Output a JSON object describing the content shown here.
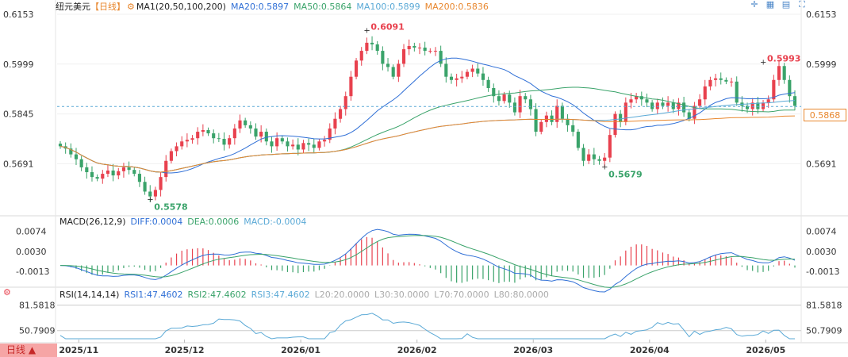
{
  "header": {
    "symbol": "纽元美元",
    "period": "【日线】",
    "ma_label": "MA1(20,50,100,200)",
    "ma20": "MA20:0.5897",
    "ma50": "MA50:0.5864",
    "ma100": "MA100:0.5899",
    "ma200": "MA200:0.5836"
  },
  "macd_header": {
    "label": "MACD(26,12,9)",
    "diff": "DIFF:0.0004",
    "dea": "DEA:0.0006",
    "macd": "MACD:-0.0004"
  },
  "rsi_header": {
    "label": "RSI(14,14,14)",
    "rsi1": "RSI1:47.4602",
    "rsi2": "RSI2:47.4602",
    "rsi3": "RSI3:47.4602",
    "l20": "L20:20.0000",
    "l30": "L30:30.0000",
    "l70": "L70:70.0000",
    "l80": "L80:80.0000"
  },
  "bottom_tab": "日线 ▲",
  "current_price": "0.5868",
  "colors": {
    "up": "#e8414e",
    "down": "#3aa36a",
    "ma20": "#2f6fd6",
    "ma50": "#3aa36a",
    "ma100": "#5aa9d6",
    "ma200": "#e8872e",
    "axis_text": "#333333"
  },
  "icons": [
    "crosshair-icon",
    "grid-icon",
    "settings-icon",
    "expand-icon"
  ],
  "chart_data": [
    {
      "type": "candlestick",
      "title": "纽元美元【日线】",
      "y_ticks": [
        "0.6153",
        "0.5999",
        "0.5845",
        "0.5691"
      ],
      "ylim": [
        0.554,
        0.6153
      ],
      "x_ticks": [
        "2025/11",
        "2025/12",
        "2026/01",
        "2026/02",
        "2026/03",
        "2026/04",
        "2026/05"
      ],
      "annotations": [
        {
          "label": "0.6091",
          "value": 0.6091,
          "kind": "high"
        },
        {
          "label": "0.5578",
          "value": 0.5578,
          "kind": "low"
        },
        {
          "label": "0.5679",
          "value": 0.5679,
          "kind": "low"
        },
        {
          "label": "0.5993",
          "value": 0.5993,
          "kind": "high"
        }
      ],
      "ohlc_close": [
        0.5745,
        0.5738,
        0.572,
        0.5705,
        0.568,
        0.5665,
        0.565,
        0.5645,
        0.566,
        0.567,
        0.5655,
        0.5668,
        0.568,
        0.5672,
        0.566,
        0.5635,
        0.5605,
        0.559,
        0.561,
        0.565,
        0.57,
        0.573,
        0.5745,
        0.576,
        0.5765,
        0.577,
        0.579,
        0.5795,
        0.5785,
        0.577,
        0.5768,
        0.575,
        0.577,
        0.58,
        0.5825,
        0.581,
        0.58,
        0.5775,
        0.579,
        0.576,
        0.5745,
        0.577,
        0.576,
        0.5745,
        0.575,
        0.5735,
        0.5755,
        0.575,
        0.574,
        0.576,
        0.5765,
        0.58,
        0.583,
        0.586,
        0.59,
        0.596,
        0.601,
        0.604,
        0.6065,
        0.606,
        0.604,
        0.6,
        0.599,
        0.596,
        0.6,
        0.6045,
        0.6055,
        0.605,
        0.605,
        0.604,
        0.604,
        0.604,
        0.6,
        0.596,
        0.595,
        0.5955,
        0.596,
        0.5975,
        0.5985,
        0.597,
        0.595,
        0.5925,
        0.59,
        0.5885,
        0.5905,
        0.588,
        0.585,
        0.59,
        0.589,
        0.586,
        0.579,
        0.582,
        0.584,
        0.582,
        0.587,
        0.583,
        0.581,
        0.579,
        0.574,
        0.57,
        0.572,
        0.5705,
        0.57,
        0.571,
        0.578,
        0.5845,
        0.582,
        0.588,
        0.589,
        0.59,
        0.589,
        0.588,
        0.586,
        0.588,
        0.587,
        0.588,
        0.586,
        0.588,
        0.585,
        0.583,
        0.587,
        0.589,
        0.593,
        0.595,
        0.5955,
        0.595,
        0.5945,
        0.5945,
        0.588,
        0.587,
        0.586,
        0.588,
        0.586,
        0.588,
        0.589,
        0.595,
        0.5993,
        0.595,
        0.59,
        0.587
      ]
    },
    {
      "type": "bar",
      "title": "MACD(26,12,9)",
      "y_ticks": [
        "0.0074",
        "0.0030",
        "-0.0013"
      ],
      "ylim": [
        -0.0035,
        0.0085
      ],
      "series": [
        {
          "name": "DIFF"
        },
        {
          "name": "DEA"
        }
      ]
    },
    {
      "type": "line",
      "title": "RSI(14,14,14)",
      "y_ticks": [
        "81.5818",
        "50.7909"
      ],
      "series": [
        {
          "name": "RSI1"
        }
      ]
    }
  ]
}
